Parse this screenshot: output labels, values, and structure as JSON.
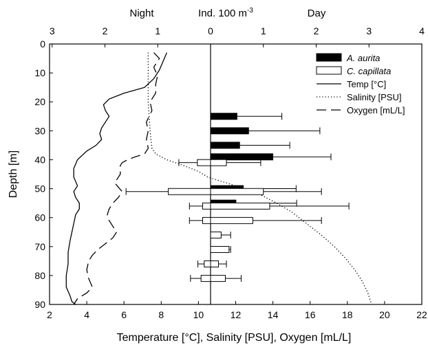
{
  "chart_data": {
    "type": "bar",
    "titles": {
      "top_center": "Ind. 100 m",
      "top_center_superscript": "-3",
      "top_left": "Night",
      "top_right": "Day"
    },
    "xlabel": "Temperature [°C], Salinity [PSU], Oxygen [mL/L]",
    "ylabel": "Depth [m]",
    "bottom_axis": {
      "range": [
        2,
        22
      ],
      "ticks": [
        "2",
        "4",
        "6",
        "8",
        "10",
        "12",
        "14",
        "16",
        "18",
        "20",
        "22"
      ]
    },
    "top_axis": {
      "range": [
        -3,
        4
      ],
      "ticks": [
        {
          "value": -3,
          "label": "3"
        },
        {
          "value": -2,
          "label": "2"
        },
        {
          "value": -1,
          "label": "1"
        },
        {
          "value": 0,
          "label": "0"
        },
        {
          "value": 1,
          "label": "1"
        },
        {
          "value": 2,
          "label": "2"
        },
        {
          "value": 3,
          "label": "3"
        },
        {
          "value": 4,
          "label": "4"
        }
      ]
    },
    "left_axis": {
      "range": [
        0,
        90
      ],
      "ticks": [
        "0",
        "10",
        "20",
        "30",
        "40",
        "50",
        "60",
        "70",
        "80",
        "90"
      ],
      "inverted": true
    },
    "legend": {
      "position": "top-right",
      "entries": [
        {
          "label": "A. aurita",
          "italic": true,
          "style": "filled-bar"
        },
        {
          "label": "C. capillata",
          "italic": true,
          "style": "open-bar"
        },
        {
          "label": "Temp [°C]",
          "italic": false,
          "style": "solid"
        },
        {
          "label": "Salinity [PSU]",
          "italic": false,
          "style": "dotted"
        },
        {
          "label": "Oxygen [mL/L]",
          "italic": false,
          "style": "dashed"
        }
      ]
    },
    "series_bars": [
      {
        "name": "A. aurita",
        "fill": "#000000",
        "bars": [
          {
            "depth": 25,
            "value": 0.5,
            "error": 0.85
          },
          {
            "depth": 30,
            "value": 0.72,
            "error": 1.35
          },
          {
            "depth": 35,
            "value": 0.55,
            "error": 0.95
          },
          {
            "depth": 39,
            "value": 1.18,
            "error": 1.1
          },
          {
            "depth": 50,
            "value": 0.62,
            "error": 1.0
          },
          {
            "depth": 55,
            "value": 0.48,
            "error": 1.15
          }
        ]
      },
      {
        "name": "C. capillata",
        "fill": "#ffffff",
        "bars": [
          {
            "depth": 41,
            "night": 0.25,
            "night_error": 0.35,
            "day": 0.3,
            "day_error": 0.65
          },
          {
            "depth": 51,
            "night": 0.8,
            "night_error": 0.8,
            "day": 1.0,
            "day_error": 1.1
          },
          {
            "depth": 56,
            "night": 0.15,
            "night_error": 0.25,
            "day": 1.12,
            "day_error": 1.5
          },
          {
            "depth": 61,
            "night": 0.15,
            "night_error": 0.25,
            "day": 0.8,
            "day_error": 1.3
          },
          {
            "depth": 66,
            "day": 0.2,
            "day_error": 0.18
          },
          {
            "depth": 71,
            "day": 0.35,
            "day_error": 0.03
          },
          {
            "depth": 76,
            "night": 0.12,
            "night_error": 0.12,
            "day": 0.15,
            "day_error": 0.15
          },
          {
            "depth": 81,
            "night": 0.18,
            "night_error": 0.2,
            "day": 0.28,
            "day_error": 0.3
          }
        ]
      }
    ],
    "series_profiles": [
      {
        "name": "Temp [°C]",
        "style": "solid",
        "points": [
          [
            8.3,
            3
          ],
          [
            8.1,
            6
          ],
          [
            7.9,
            9
          ],
          [
            7.6,
            12
          ],
          [
            7.1,
            15
          ],
          [
            6.0,
            17
          ],
          [
            5.2,
            19
          ],
          [
            4.9,
            21
          ],
          [
            5.0,
            23
          ],
          [
            5.2,
            25
          ],
          [
            5.0,
            27
          ],
          [
            4.8,
            29
          ],
          [
            4.7,
            31
          ],
          [
            4.8,
            33
          ],
          [
            4.5,
            35
          ],
          [
            4.0,
            37
          ],
          [
            3.5,
            40
          ],
          [
            3.3,
            43
          ],
          [
            3.3,
            46
          ],
          [
            3.5,
            49
          ],
          [
            3.3,
            51
          ],
          [
            3.4,
            53
          ],
          [
            3.6,
            55
          ],
          [
            3.6,
            57
          ],
          [
            3.4,
            59
          ],
          [
            3.3,
            62
          ],
          [
            3.2,
            65
          ],
          [
            3.1,
            68
          ],
          [
            3.0,
            72
          ],
          [
            3.0,
            76
          ],
          [
            2.9,
            80
          ],
          [
            2.9,
            84
          ],
          [
            3.1,
            87
          ],
          [
            3.2,
            89
          ],
          [
            3.4,
            90
          ]
        ]
      },
      {
        "name": "Salinity [PSU]",
        "style": "dotted",
        "points": [
          [
            7.3,
            3
          ],
          [
            7.3,
            10
          ],
          [
            7.3,
            20
          ],
          [
            7.4,
            30
          ],
          [
            7.5,
            36
          ],
          [
            7.7,
            38
          ],
          [
            8.3,
            40
          ],
          [
            9.2,
            42
          ],
          [
            10.0,
            44
          ],
          [
            10.5,
            46
          ],
          [
            11.5,
            48
          ],
          [
            12.5,
            50
          ],
          [
            13.3,
            52
          ],
          [
            14.2,
            55
          ],
          [
            15.0,
            58
          ],
          [
            15.8,
            62
          ],
          [
            16.6,
            66
          ],
          [
            17.3,
            70
          ],
          [
            17.9,
            74
          ],
          [
            18.4,
            78
          ],
          [
            18.8,
            82
          ],
          [
            19.1,
            86
          ],
          [
            19.3,
            90
          ]
        ]
      },
      {
        "name": "Oxygen [mL/L]",
        "style": "dashed",
        "points": [
          [
            7.6,
            3
          ],
          [
            7.9,
            5
          ],
          [
            7.6,
            8
          ],
          [
            7.8,
            11
          ],
          [
            7.7,
            14
          ],
          [
            7.7,
            17
          ],
          [
            7.4,
            20
          ],
          [
            7.5,
            23
          ],
          [
            7.2,
            27
          ],
          [
            7.3,
            30
          ],
          [
            7.2,
            33
          ],
          [
            7.3,
            36
          ],
          [
            7.1,
            38
          ],
          [
            6.6,
            39
          ],
          [
            6.2,
            40
          ],
          [
            5.9,
            41
          ],
          [
            5.8,
            42
          ],
          [
            5.8,
            45
          ],
          [
            5.5,
            48
          ],
          [
            5.9,
            51
          ],
          [
            5.7,
            53
          ],
          [
            5.4,
            55
          ],
          [
            5.2,
            57
          ],
          [
            5.1,
            59
          ],
          [
            5.2,
            61
          ],
          [
            5.4,
            63
          ],
          [
            5.6,
            65
          ],
          [
            5.4,
            67
          ],
          [
            5.0,
            69
          ],
          [
            4.6,
            71
          ],
          [
            4.3,
            73
          ],
          [
            4.1,
            75
          ],
          [
            4.0,
            78
          ],
          [
            4.1,
            81
          ],
          [
            4.3,
            84
          ],
          [
            4.0,
            86
          ],
          [
            3.5,
            88
          ],
          [
            3.3,
            90
          ]
        ]
      }
    ]
  }
}
